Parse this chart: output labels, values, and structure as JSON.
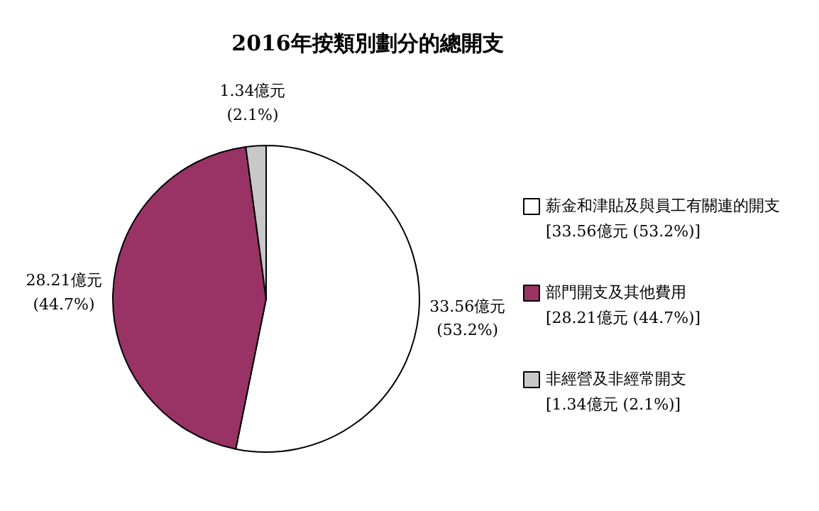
{
  "chart_data": {
    "type": "pie",
    "title": "2016年按類別劃分的總開支",
    "categories": [
      "薪金和津貼及與員工有關連的開支\n[33.56億元 (53.2%)]",
      "部門開支及其他費用\n[28.21億元 (44.7%)]",
      "非經營及非經常開支\n[1.34億元 (2.1%)]"
    ],
    "values": [
      33.56,
      28.21,
      1.34
    ],
    "colors": [
      "#ffffff",
      "#993366",
      "#c8c8c8"
    ],
    "value_labels": [
      "33.56億元\n(53.2%)",
      "28.21億元\n(44.7%)",
      "1.34億元\n(2.1%)"
    ],
    "legend": "right"
  }
}
